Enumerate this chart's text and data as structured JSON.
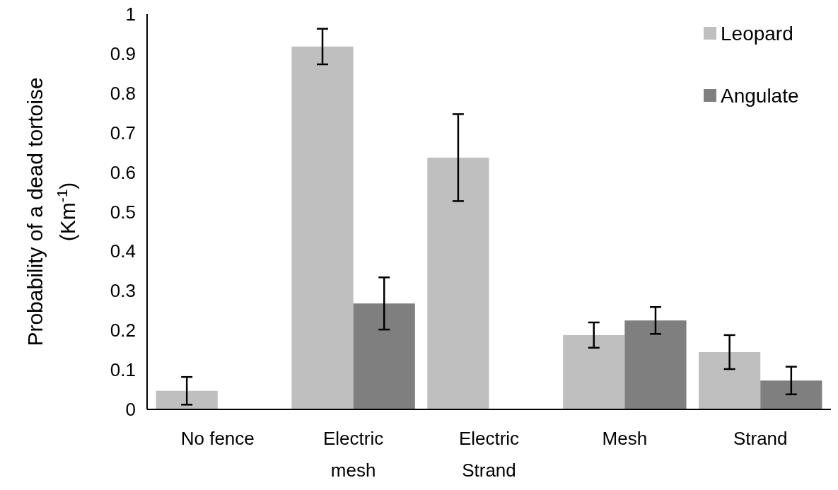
{
  "chart_data": {
    "type": "bar",
    "ylabel": "Probability of a dead tortoise (Km$^{-1}$)",
    "categories": [
      "No fence",
      "Electric mesh",
      "Electric Strand",
      "Mesh",
      "Strand"
    ],
    "series": [
      {
        "name": "Leopard",
        "color": "#bfbfbf",
        "values": [
          0.047,
          0.918,
          0.637,
          0.188,
          0.145
        ],
        "errors": [
          0.035,
          0.045,
          0.11,
          0.032,
          0.043
        ]
      },
      {
        "name": "Angulate",
        "color": "#7f7f7f",
        "values": [
          null,
          0.268,
          null,
          0.225,
          0.073
        ],
        "errors": [
          null,
          0.066,
          null,
          0.034,
          0.035
        ]
      }
    ],
    "ylim": [
      0,
      1
    ],
    "yticks": [
      0,
      {
        "value": 0.1,
        "label": "0.1"
      },
      {
        "value": 0.2,
        "label": "0.2"
      },
      {
        "value": 0.3,
        "label": "0.3"
      },
      {
        "value": 0.4,
        "label": "0.4"
      },
      {
        "value": 0.5,
        "label": "0.5"
      },
      {
        "value": 0.6,
        "label": "0.6"
      },
      {
        "value": 0.7,
        "label": "0.7"
      },
      {
        "value": 0.8,
        "label": "0.8"
      },
      {
        "value": 0.9,
        "label": "0.9"
      },
      1
    ],
    "grid": false,
    "legend": "top right"
  }
}
